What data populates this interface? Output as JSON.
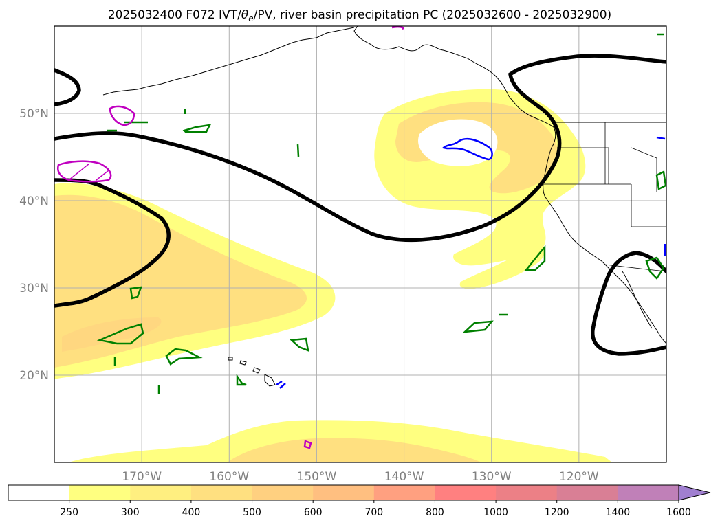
{
  "title_main": "2025032400 F072 IVT/",
  "title_theta": "θ",
  "title_sub": "e",
  "title_rest": "/PV, river basin precipitation PC (2025032600 - 2025032900)",
  "map": {
    "lon_range": [
      -180,
      -110
    ],
    "lat_range": [
      10,
      60
    ],
    "lat_ticks": [
      {
        "value": 50,
        "label": "50°N"
      },
      {
        "value": 40,
        "label": "40°N"
      },
      {
        "value": 30,
        "label": "30°N"
      },
      {
        "value": 20,
        "label": "20°N"
      }
    ],
    "lon_ticks": [
      {
        "value": -170,
        "label": "170°W"
      },
      {
        "value": -160,
        "label": "160°W"
      },
      {
        "value": -150,
        "label": "150°W"
      },
      {
        "value": -140,
        "label": "140°W"
      },
      {
        "value": -130,
        "label": "130°W"
      },
      {
        "value": -120,
        "label": "120°W"
      }
    ],
    "grid": true
  },
  "colorbar": {
    "extend": "max",
    "levels": [
      {
        "value": "250",
        "color": "#ffffff"
      },
      {
        "value": "300",
        "color": "#ffff80"
      },
      {
        "value": "400",
        "color": "#ffef80"
      },
      {
        "value": "500",
        "color": "#ffe080"
      },
      {
        "value": "600",
        "color": "#ffd080"
      },
      {
        "value": "700",
        "color": "#ffbf80"
      },
      {
        "value": "800",
        "color": "#ffa080"
      },
      {
        "value": "1000",
        "color": "#ff8080"
      },
      {
        "value": "1200",
        "color": "#ec8086"
      },
      {
        "value": "1400",
        "color": "#d97f95"
      },
      {
        "value": "1600",
        "color": "#c080b8"
      }
    ],
    "overflow_color": "#a07fd0"
  },
  "colors": {
    "theta_e_contour": "#000000",
    "pv_contour_green": "#008000",
    "pv_contour_blue": "#0000ff",
    "pv_contour_magenta": "#c000c0",
    "ivt_low": "#ffff80",
    "ivt_mid": "#ffe080"
  }
}
